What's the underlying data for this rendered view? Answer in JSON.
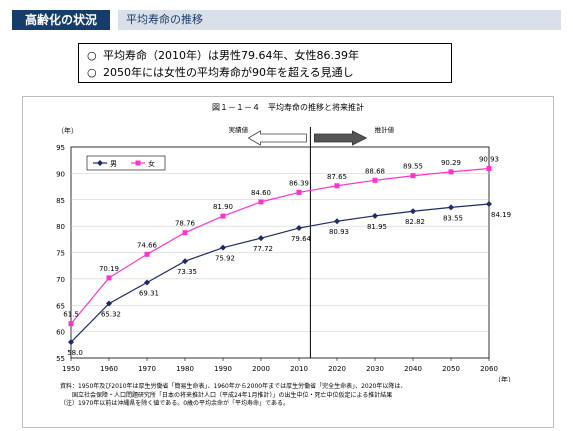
{
  "header": {
    "tag": "高齢化の状況",
    "title": "平均寿命の推移"
  },
  "bullets": [
    {
      "mark": "○",
      "text": "平均寿命（2010年）は男性79.64年、女性86.39年"
    },
    {
      "mark": "○",
      "text": "2050年には女性の平均寿命が90年を超える見通し"
    }
  ],
  "chart_data": {
    "type": "line",
    "title": "図１－１－４　平均寿命の推移と将来推計",
    "ylabel": "（年）",
    "xlabel": "（年）",
    "ylim": [
      55,
      95
    ],
    "yticks": [
      55,
      60,
      65,
      70,
      75,
      80,
      85,
      90,
      95
    ],
    "x": [
      1950,
      1960,
      1970,
      1980,
      1990,
      2000,
      2010,
      2020,
      2030,
      2040,
      2050,
      2060
    ],
    "divider_x": 2013,
    "actual_label": "実績値",
    "projection_label": "推計値",
    "legend_position": "top-left",
    "grid": true,
    "series": [
      {
        "name": "男",
        "color": "#1f2a6b",
        "marker": "diamond",
        "values": [
          58.0,
          65.32,
          69.31,
          73.35,
          75.92,
          77.72,
          79.64,
          80.93,
          81.95,
          82.82,
          83.55,
          84.19
        ],
        "labels": [
          "58.0",
          "65.32",
          "69.31",
          "73.35",
          "75.92",
          "77.72",
          "79.64",
          "80.93",
          "81.95",
          "82.82",
          "83.55",
          "84.19"
        ]
      },
      {
        "name": "女",
        "color": "#ff33cc",
        "marker": "square",
        "values": [
          61.5,
          70.19,
          74.66,
          78.76,
          81.9,
          84.6,
          86.39,
          87.65,
          88.68,
          89.55,
          90.29,
          90.93
        ],
        "labels": [
          "61.5",
          "70.19",
          "74.66",
          "78.76",
          "81.90",
          "84.60",
          "86.39",
          "87.65",
          "88.68",
          "89.55",
          "90.29",
          "90.93"
        ]
      }
    ]
  },
  "footnote": {
    "line1": "資料：1950年及び2010年は厚生労働省「簡易生命表」、1960年から2000年までは厚生労働省「完全生命表」、2020年以降は、",
    "line2": "　　国立社会保障・人口問題研究所「日本の将来推計人口（平成24年1月推計）」の出生中位・死亡中位仮定による推計結果",
    "line3": "（注）1970年以前は沖縄県を除く値である。0歳の平均余命が「平均寿命」である。"
  }
}
